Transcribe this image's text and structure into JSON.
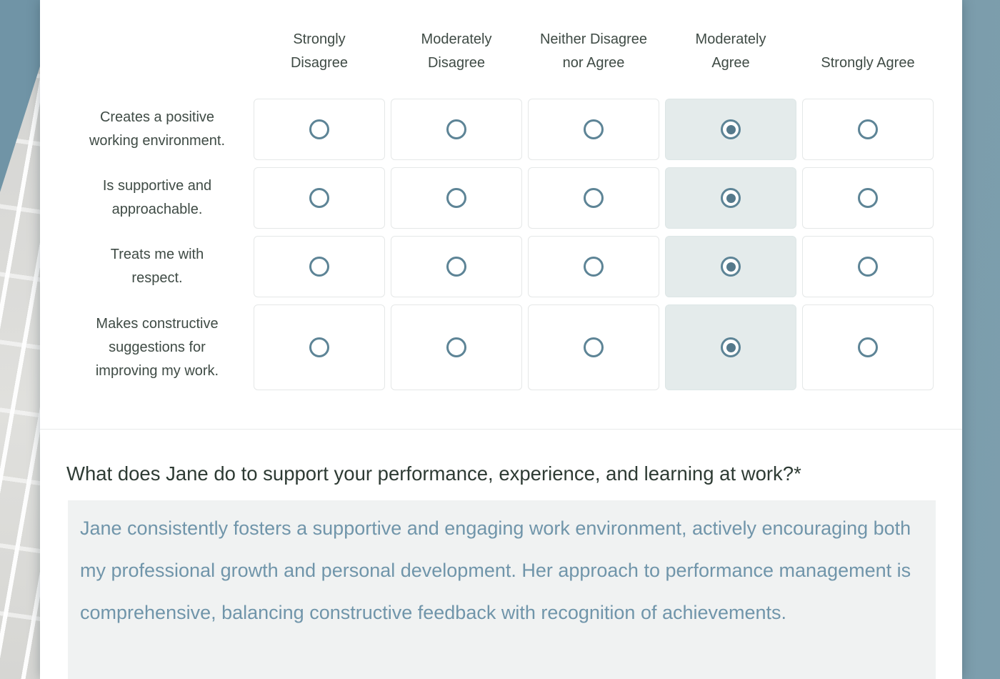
{
  "survey": {
    "matrix": {
      "columns": [
        "Strongly Disagree",
        "Moderately Disagree",
        "Neither Disagree nor Agree",
        "Moderately Agree",
        "Strongly Agree"
      ],
      "rows": [
        {
          "label": "Creates a positive working environment.",
          "selected_column": "Moderately Agree",
          "selected_index": 3
        },
        {
          "label": "Is supportive and approachable.",
          "selected_column": "Moderately Agree",
          "selected_index": 3
        },
        {
          "label": "Treats me with respect.",
          "selected_column": "Moderately Agree",
          "selected_index": 3
        },
        {
          "label": "Makes constructive suggestions for improving my work.",
          "selected_column": "Moderately Agree",
          "selected_index": 3
        }
      ]
    },
    "open_question": {
      "label": "What does Jane do to support your performance, experience, and learning at work?*",
      "answer": "Jane consistently fosters a supportive and engaging work environment, actively encouraging both my professional growth and personal development. Her approach to performance management is comprehensive, balancing constructive feedback with recognition of achievements."
    },
    "colors": {
      "page_background": "#7597a8",
      "sky_blue": "#7094a6",
      "radio_ring": "#5d8496",
      "radio_dot": "#55798b",
      "selected_cell_background": "#e4ebeb",
      "matrix_text": "#3f4b45",
      "question_text": "#2e3b34",
      "answer_text": "#7095aa",
      "answer_background": "#f0f2f2"
    }
  }
}
